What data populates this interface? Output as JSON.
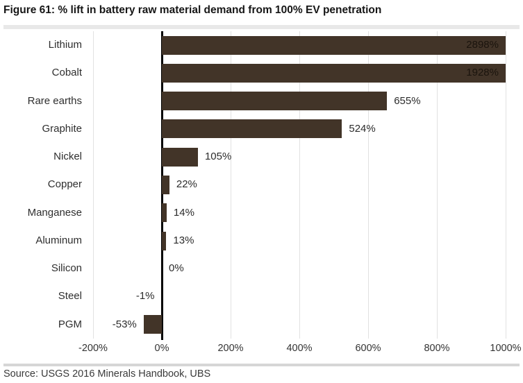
{
  "title": "Figure 61: % lift in battery raw material demand from 100% EV penetration",
  "source": "Source: USGS 2016 Minerals Handbook, UBS",
  "colors": {
    "bar": "#423428",
    "gridline": "#e1e1e1",
    "zero_axis": "#000000",
    "value_label_outside": "#2b2b2b",
    "value_label_inside": "#1b140d",
    "category_label": "#2e2e2e",
    "divider": "#d6d6d6"
  },
  "chart_data": {
    "type": "bar",
    "orientation": "horizontal",
    "title": "Figure 61: % lift in battery raw material demand from 100% EV penetration",
    "categories": [
      "Lithium",
      "Cobalt",
      "Rare earths",
      "Graphite",
      "Nickel",
      "Copper",
      "Manganese",
      "Aluminum",
      "Silicon",
      "Steel",
      "PGM"
    ],
    "values": [
      2898,
      1928,
      655,
      524,
      105,
      22,
      14,
      13,
      0,
      -1,
      -53
    ],
    "value_labels": [
      "2898%",
      "1928%",
      "655%",
      "524%",
      "105%",
      "22%",
      "14%",
      "13%",
      "0%",
      "-1%",
      "-53%"
    ],
    "xlabel": "",
    "ylabel": "",
    "xlim": [
      -200,
      1000
    ],
    "x_ticks": [
      -200,
      0,
      200,
      400,
      600,
      800,
      1000
    ],
    "x_tick_labels": [
      "-200%",
      "0%",
      "200%",
      "400%",
      "600%",
      "800%",
      "1000%"
    ],
    "grid": "vertical",
    "legend": "none",
    "bar_color": "#423428",
    "note": "Lithium and Cobalt bars are clipped at the 1000% axis maximum; their value labels appear inside the bars"
  }
}
